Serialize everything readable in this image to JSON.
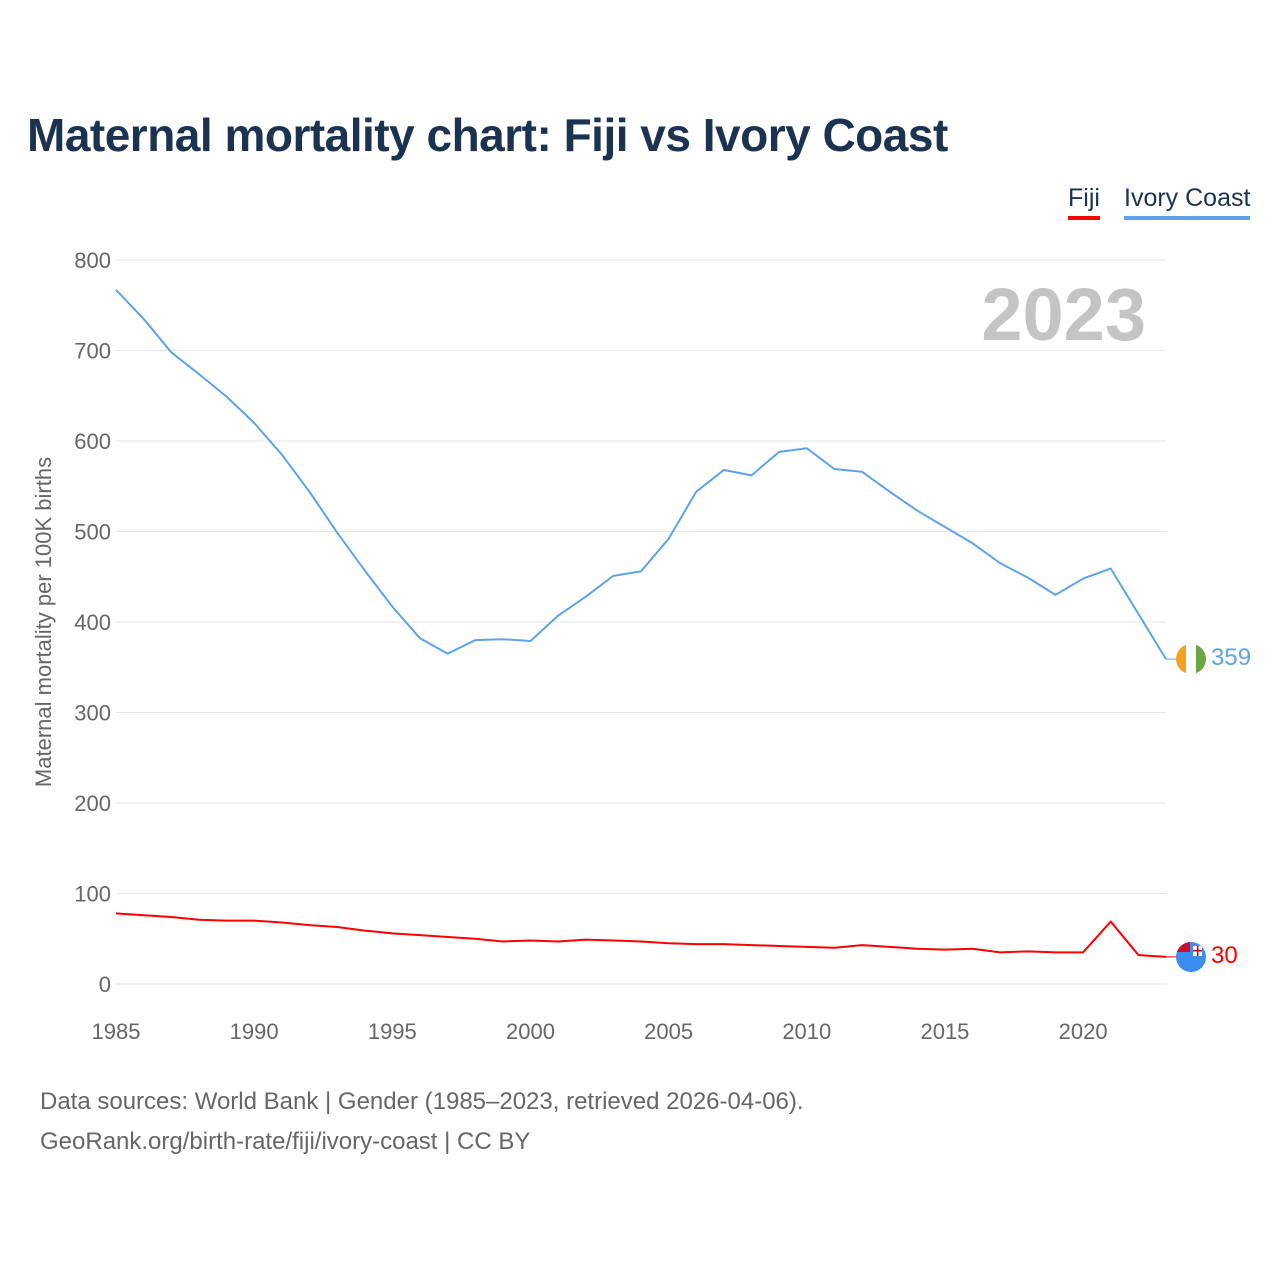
{
  "chart_data": {
    "type": "line",
    "title": "Maternal mortality chart: Fiji vs Ivory Coast",
    "ylabel": "Maternal mortality per 100K births",
    "xlabel": "",
    "year_watermark": "2023",
    "xlim": [
      1985,
      2023
    ],
    "ylim": [
      0,
      800
    ],
    "x_ticks": [
      1985,
      1990,
      1995,
      2000,
      2005,
      2010,
      2015,
      2020
    ],
    "y_ticks": [
      0,
      100,
      200,
      300,
      400,
      500,
      600,
      700,
      800
    ],
    "grid": true,
    "legend_position": "top-right",
    "x": [
      1985,
      1986,
      1987,
      1988,
      1989,
      1990,
      1991,
      1992,
      1993,
      1994,
      1995,
      1996,
      1997,
      1998,
      1999,
      2000,
      2001,
      2002,
      2003,
      2004,
      2005,
      2006,
      2007,
      2008,
      2009,
      2010,
      2011,
      2012,
      2013,
      2014,
      2015,
      2016,
      2017,
      2018,
      2019,
      2020,
      2021,
      2022,
      2023
    ],
    "series": [
      {
        "name": "Fiji",
        "color": "#ff0000",
        "end_label": "30",
        "values": [
          78,
          76,
          74,
          71,
          70,
          70,
          68,
          65,
          63,
          59,
          56,
          54,
          52,
          50,
          47,
          48,
          47,
          49,
          48,
          47,
          45,
          44,
          44,
          43,
          42,
          41,
          40,
          43,
          41,
          39,
          38,
          39,
          35,
          36,
          35,
          35,
          69,
          32,
          30
        ]
      },
      {
        "name": "Ivory Coast",
        "color": "#5ea3ea",
        "end_label": "359",
        "values": [
          767,
          735,
          698,
          674,
          649,
          620,
          585,
          544,
          499,
          457,
          417,
          382,
          365,
          380,
          381,
          379,
          407,
          428,
          451,
          456,
          492,
          544,
          568,
          562,
          588,
          592,
          569,
          566,
          544,
          523,
          505,
          487,
          465,
          449,
          430,
          448,
          459,
          409,
          359
        ]
      }
    ]
  },
  "footer": {
    "line1": "Data sources: World Bank | Gender (1985–2023, retrieved 2026-04-06).",
    "line2": "GeoRank.org/birth-rate/fiji/ivory-coast | CC BY"
  }
}
